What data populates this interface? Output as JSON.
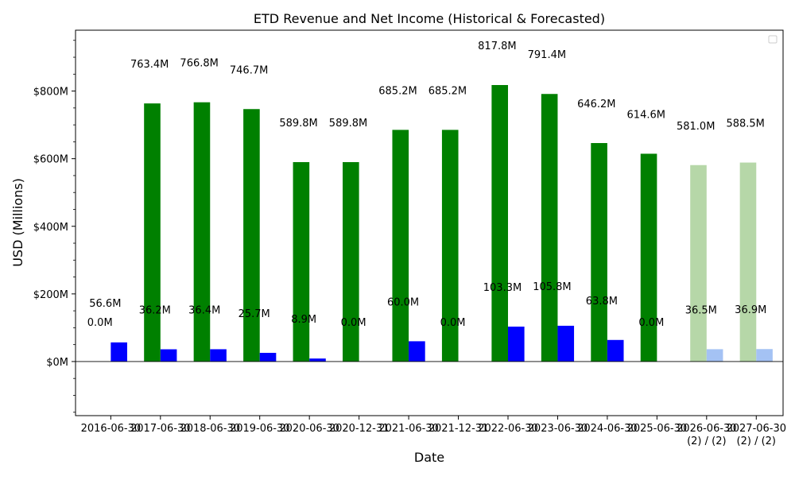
{
  "chart_data": {
    "type": "bar",
    "title": "ETD Revenue and Net Income (Historical & Forecasted)",
    "xlabel": "Date",
    "ylabel": "USD (Millions)",
    "ylim": [
      -160,
      980
    ],
    "yticks": [
      0,
      200,
      400,
      600,
      800
    ],
    "ytick_labels": [
      "$0M",
      "$200M",
      "$400M",
      "$600M",
      "$800M"
    ],
    "categories": [
      "2016-06-30",
      "2017-06-30",
      "2018-06-30",
      "2019-06-30",
      "2020-06-30",
      "2020-12-31",
      "2021-06-30",
      "2021-12-31",
      "2022-06-30",
      "2023-06-30",
      "2024-06-30",
      "2025-06-30",
      "2026-06-30\n(2) / (2)",
      "2027-06-30\n(2) / (2)"
    ],
    "forecast": [
      false,
      false,
      false,
      false,
      false,
      false,
      false,
      false,
      false,
      false,
      false,
      false,
      true,
      true
    ],
    "series": [
      {
        "values": [
          0.0,
          763.4,
          766.8,
          746.7,
          589.8,
          589.8,
          685.2,
          685.2,
          817.8,
          791.4,
          646.2,
          614.6,
          581.0,
          588.5
        ],
        "labels": [
          "0.0M",
          "763.4M",
          "766.8M",
          "746.7M",
          "589.8M",
          "589.8M",
          "685.2M",
          "685.2M",
          "817.8M",
          "791.4M",
          "646.2M",
          "614.6M",
          "581.0M",
          "588.5M"
        ],
        "color": "#008000",
        "forecast_color": "#b6d7a8"
      },
      {
        "values": [
          56.6,
          36.2,
          36.4,
          25.7,
          8.9,
          0.0,
          60.0,
          0.0,
          103.3,
          105.8,
          63.8,
          0.0,
          36.5,
          36.9
        ],
        "labels": [
          "56.6M",
          "36.2M",
          "36.4M",
          "25.7M",
          "8.9M",
          "0.0M",
          "60.0M",
          "0.0M",
          "103.3M",
          "105.8M",
          "63.8M",
          "0.0M",
          "36.5M",
          "36.9M"
        ],
        "color": "#0000ff",
        "forecast_color": "#a4c2f4"
      }
    ],
    "legend": "top-right",
    "grid": false
  }
}
